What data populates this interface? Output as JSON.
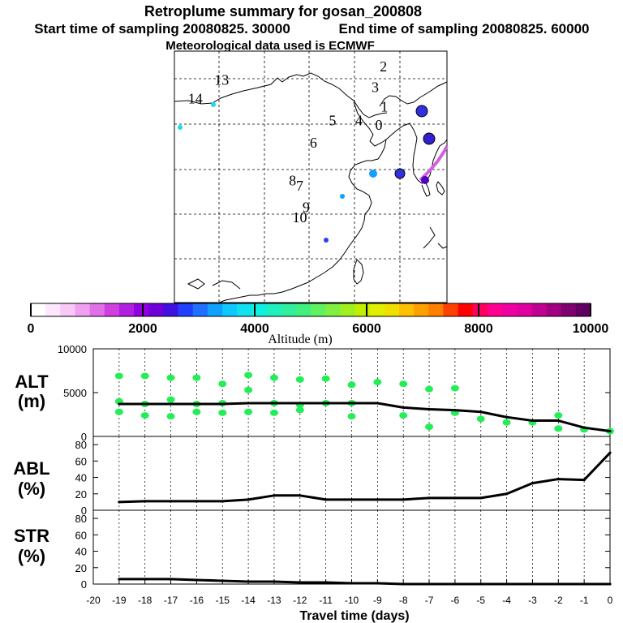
{
  "header": {
    "title": "Retroplume summary for gosan_200808",
    "start_time": "Start time of sampling 20080825. 30000",
    "end_time": "End time of sampling 20080825. 60000",
    "met_data": "Meteorological data used is ECMWF"
  },
  "map": {
    "markers": [
      {
        "label": "1",
        "lon": 131.1,
        "lat": 36.8
      },
      {
        "label": "2",
        "lon": 131.0,
        "lat": 41.3
      },
      {
        "label": "3",
        "lon": 130.1,
        "lat": 39.0
      },
      {
        "label": "4",
        "lon": 128.3,
        "lat": 35.3
      },
      {
        "label": "5",
        "lon": 125.4,
        "lat": 35.3
      },
      {
        "label": "6",
        "lon": 123.3,
        "lat": 32.8
      },
      {
        "label": "7",
        "lon": 121.8,
        "lat": 28.0
      },
      {
        "label": "8",
        "lon": 121.0,
        "lat": 28.6
      },
      {
        "label": "9",
        "lon": 122.5,
        "lat": 25.6
      },
      {
        "label": "10",
        "lon": 121.8,
        "lat": 24.5
      },
      {
        "label": "13",
        "lon": 113.2,
        "lat": 39.8
      },
      {
        "label": "14",
        "lon": 110.3,
        "lat": 37.7
      },
      {
        "label": "0",
        "lon": 130.5,
        "lat": 34.8
      }
    ]
  },
  "colorbar": {
    "ticks": [
      "0",
      "2000",
      "4000",
      "6000",
      "8000",
      "10000"
    ],
    "label": "Altitude (m)",
    "colors": [
      "#ffffff",
      "#ffe6ff",
      "#f8c8f8",
      "#f0a0f0",
      "#e070e8",
      "#d040e0",
      "#b020e0",
      "#9000e0",
      "#7000d8",
      "#4010e0",
      "#2040ff",
      "#2070ff",
      "#10a0ff",
      "#10c8ff",
      "#10e0f0",
      "#10f0e0",
      "#20f0c0",
      "#30f0a0",
      "#40f080",
      "#60f060",
      "#80f040",
      "#a0f020",
      "#c0f000",
      "#e0f000",
      "#f0e000",
      "#ffc000",
      "#ffa000",
      "#ff8000",
      "#ff4000",
      "#ff0000",
      "#ff0060",
      "#ff0090",
      "#f000a0",
      "#e000a0",
      "#c00090",
      "#a00080",
      "#800070",
      "#600060"
    ]
  },
  "chart_data": [
    {
      "type": "line",
      "panel": "ALT",
      "ylabel": "ALT",
      "yunit": "(m)",
      "ylim": [
        0,
        10000
      ],
      "yticks": [
        "0",
        "5000",
        "10000"
      ],
      "x": [
        -19,
        -18,
        -17,
        -16,
        -15,
        -14,
        -13,
        -12,
        -11,
        -10,
        -9,
        -8,
        -7,
        -6,
        -5,
        -4,
        -3,
        -2,
        -1,
        0
      ],
      "values": [
        3700,
        3700,
        3700,
        3700,
        3700,
        3800,
        3800,
        3800,
        3800,
        3800,
        3800,
        3300,
        3100,
        3000,
        2800,
        2200,
        1800,
        1800,
        1000,
        600
      ],
      "scatter_x": [
        -19,
        -19,
        -19,
        -18,
        -18,
        -18,
        -17,
        -17,
        -17,
        -16,
        -16,
        -16,
        -15,
        -15,
        -15,
        -14,
        -14,
        -14,
        -13,
        -13,
        -13,
        -12,
        -12,
        -12,
        -11,
        -11,
        -10,
        -10,
        -10,
        -9,
        -8,
        -8,
        -7,
        -7,
        -6,
        -6,
        -5,
        -4,
        -3,
        -2,
        -2,
        -1,
        0
      ],
      "scatter_y": [
        6900,
        4000,
        2800,
        6900,
        3700,
        2400,
        6700,
        4200,
        2300,
        6700,
        3700,
        2800,
        6000,
        3800,
        2700,
        7000,
        5300,
        2800,
        6700,
        3800,
        2700,
        6500,
        3600,
        3000,
        6600,
        3800,
        5900,
        3800,
        2300,
        6200,
        6000,
        2400,
        5400,
        1100,
        5500,
        2700,
        2000,
        1600,
        1600,
        2400,
        900,
        800,
        600
      ]
    },
    {
      "type": "line",
      "panel": "ABL",
      "ylabel": "ABL",
      "yunit": "(%)",
      "ylim": [
        0,
        90
      ],
      "yticks": [
        "0",
        "20",
        "40",
        "60",
        "80"
      ],
      "x": [
        -19,
        -18,
        -17,
        -16,
        -15,
        -14,
        -13,
        -12,
        -11,
        -10,
        -9,
        -8,
        -7,
        -6,
        -5,
        -4,
        -3,
        -2,
        -1,
        0
      ],
      "values": [
        10,
        11,
        11,
        11,
        11,
        13,
        18,
        18,
        13,
        13,
        13,
        13,
        15,
        15,
        15,
        20,
        33,
        38,
        37,
        70
      ]
    },
    {
      "type": "line",
      "panel": "STR",
      "ylabel": "STR",
      "yunit": "(%)",
      "ylim": [
        0,
        90
      ],
      "yticks": [
        "0",
        "20",
        "40",
        "60",
        "80"
      ],
      "x": [
        -19,
        -18,
        -17,
        -16,
        -15,
        -14,
        -13,
        -12,
        -11,
        -10,
        -9,
        -8,
        -7,
        -6,
        -5,
        -4,
        -3,
        -2,
        -1,
        0
      ],
      "values": [
        6,
        6,
        6,
        5,
        4,
        3,
        3,
        2,
        2,
        1,
        1,
        0,
        0,
        0,
        0,
        0,
        0,
        0,
        0,
        0
      ],
      "xlabel": "Travel time (days)",
      "xticks": [
        "-20",
        "-19",
        "-18",
        "-17",
        "-16",
        "-15",
        "-14",
        "-13",
        "-12",
        "-11",
        "-10",
        "-9",
        "-8",
        "-7",
        "-6",
        "-5",
        "-4",
        "-3",
        "-2",
        "-1",
        "0"
      ]
    }
  ]
}
